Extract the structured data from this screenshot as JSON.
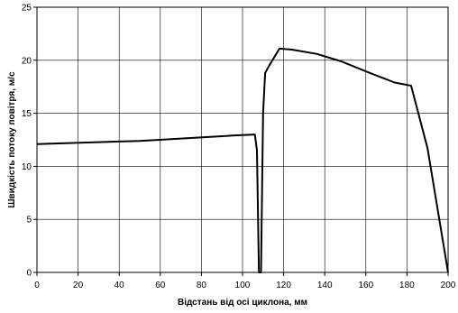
{
  "chart_data": {
    "type": "line",
    "title": "",
    "xlabel": "Відстань від осі циклона, мм",
    "ylabel": "Швидкість потоку повітря, м/с",
    "xlim": [
      0,
      200
    ],
    "ylim": [
      0,
      25
    ],
    "xticks": [
      0,
      20,
      40,
      60,
      80,
      100,
      120,
      140,
      160,
      180,
      200
    ],
    "yticks": [
      0,
      5,
      10,
      15,
      20,
      25
    ],
    "grid": true,
    "legend": "none",
    "series": [
      {
        "color": "#000000",
        "x": [
          0,
          50,
          95,
          106,
          107,
          108,
          109,
          110,
          111,
          113,
          118,
          124,
          136,
          148,
          162,
          174,
          182,
          190,
          200
        ],
        "y": [
          12.1,
          12.4,
          12.9,
          13.0,
          11.5,
          0,
          0,
          15.0,
          18.8,
          19.5,
          21.1,
          21.0,
          20.6,
          19.9,
          18.8,
          17.9,
          17.6,
          11.7,
          0
        ]
      }
    ]
  }
}
